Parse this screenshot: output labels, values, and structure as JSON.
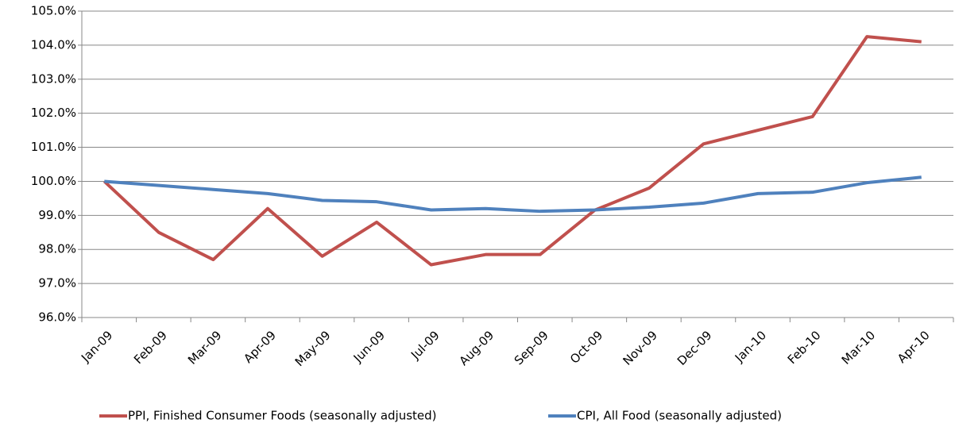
{
  "chart_data": {
    "type": "line",
    "categories": [
      "Jan-09",
      "Feb-09",
      "Mar-09",
      "Apr-09",
      "May-09",
      "Jun-09",
      "Jul-09",
      "Aug-09",
      "Sep-09",
      "Oct-09",
      "Nov-09",
      "Dec-09",
      "Jan-10",
      "Feb-10",
      "Mar-10",
      "Apr-10"
    ],
    "series": [
      {
        "name": "PPI, Finished Consumer Foods (seasonally adjusted)",
        "color": "#c0504d",
        "values": [
          100.0,
          98.5,
          97.7,
          99.2,
          97.8,
          98.8,
          97.55,
          97.85,
          97.85,
          99.15,
          99.8,
          101.1,
          101.5,
          101.9,
          104.25,
          104.1
        ]
      },
      {
        "name": "CPI, All Food (seasonally adjusted)",
        "color": "#4f81bd",
        "values": [
          100.0,
          99.88,
          99.76,
          99.64,
          99.44,
          99.4,
          99.16,
          99.2,
          99.12,
          99.16,
          99.24,
          99.36,
          99.64,
          99.68,
          99.96,
          100.12
        ]
      }
    ],
    "ylim": [
      96,
      105
    ],
    "yticks": [
      {
        "value": 96,
        "label": "96.0%"
      },
      {
        "value": 97,
        "label": "97.0%"
      },
      {
        "value": 98,
        "label": "98.0%"
      },
      {
        "value": 99,
        "label": "99.0%"
      },
      {
        "value": 100,
        "label": "100.0%"
      },
      {
        "value": 101,
        "label": "101.0%"
      },
      {
        "value": 102,
        "label": "102.0%"
      },
      {
        "value": 103,
        "label": "103.0%"
      },
      {
        "value": 104,
        "label": "104.0%"
      },
      {
        "value": 105,
        "label": "105.0%"
      }
    ],
    "grid": true,
    "legend": "bottom"
  }
}
